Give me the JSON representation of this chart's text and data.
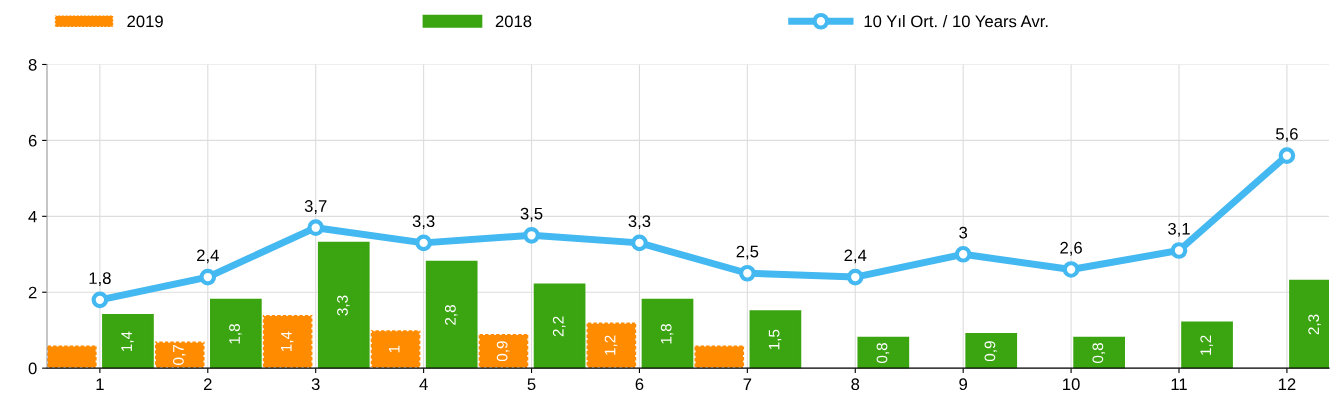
{
  "chart_data": {
    "type": "bar",
    "categories": [
      "1",
      "2",
      "3",
      "4",
      "5",
      "6",
      "7",
      "8",
      "9",
      "10",
      "11",
      "12"
    ],
    "series": [
      {
        "name": "2019",
        "color": "#ff8c00",
        "values": [
          0.6,
          0.7,
          1.4,
          1,
          0.9,
          1.2,
          0.6,
          null,
          null,
          null,
          null,
          null
        ],
        "value_labels": [
          null,
          "0,7",
          "1,4",
          "1",
          "0,9",
          "1,2",
          null,
          null,
          null,
          null,
          null,
          null
        ]
      },
      {
        "name": "2018",
        "color": "#3aa510",
        "values": [
          1.4,
          1.8,
          3.3,
          2.8,
          2.2,
          1.8,
          1.5,
          0.8,
          0.9,
          0.8,
          1.2,
          2.3
        ],
        "value_labels": [
          "1,4",
          "1,8",
          "3,3",
          "2,8",
          "2,2",
          "1,8",
          "1,5",
          "0,8",
          "0,9",
          "0,8",
          "1,2",
          "2,3"
        ]
      },
      {
        "name": "10 Yıl Ort. / 10 Years Avr.",
        "type": "line",
        "color": "#44b8f0",
        "values": [
          1.8,
          2.4,
          3.7,
          3.3,
          3.5,
          3.3,
          2.5,
          2.4,
          3,
          2.6,
          3.1,
          5.6
        ],
        "value_labels": [
          "1,8",
          "2,4",
          "3,7",
          "3,3",
          "3,5",
          "3,3",
          "2,5",
          "2,4",
          "3",
          "2,6",
          "3,1",
          "5,6"
        ],
        "marker": "circle"
      }
    ],
    "ylim": [
      0,
      8
    ],
    "yticks": [
      0,
      2,
      4,
      6,
      8
    ],
    "grid": true,
    "legend": "top"
  }
}
